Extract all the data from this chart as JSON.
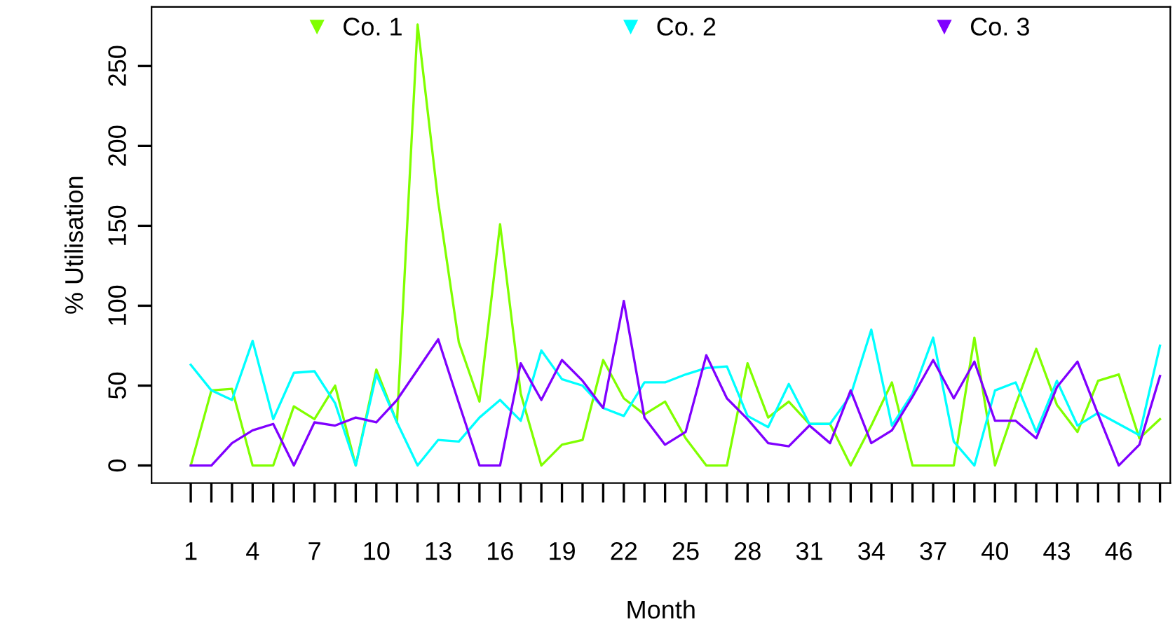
{
  "chart_data": {
    "type": "line",
    "xlabel": "Month",
    "ylabel": "% Utilisation",
    "legend": "top",
    "x": [
      1,
      2,
      3,
      4,
      5,
      6,
      7,
      8,
      9,
      10,
      11,
      12,
      13,
      14,
      15,
      16,
      17,
      18,
      19,
      20,
      21,
      22,
      23,
      24,
      25,
      26,
      27,
      28,
      29,
      30,
      31,
      32,
      33,
      34,
      35,
      36,
      37,
      38,
      39,
      40,
      41,
      42,
      43,
      44,
      45,
      46,
      47,
      48
    ],
    "xlim": [
      -0.9,
      48.5
    ],
    "ylim": [
      -11,
      287
    ],
    "yticks": [
      0,
      50,
      100,
      150,
      200,
      250
    ],
    "xticks": [
      1,
      {
        "value": 2,
        "label": null
      },
      {
        "value": 3,
        "label": null
      },
      4,
      {
        "value": 5,
        "label": null
      },
      {
        "value": 6,
        "label": null
      },
      7,
      {
        "value": 8,
        "label": null
      },
      {
        "value": 9,
        "label": null
      },
      10,
      {
        "value": 11,
        "label": null
      },
      {
        "value": 12,
        "label": null
      },
      13,
      {
        "value": 14,
        "label": null
      },
      {
        "value": 15,
        "label": null
      },
      16,
      {
        "value": 17,
        "label": null
      },
      {
        "value": 18,
        "label": null
      },
      19,
      {
        "value": 20,
        "label": null
      },
      {
        "value": 21,
        "label": null
      },
      22,
      {
        "value": 23,
        "label": null
      },
      {
        "value": 24,
        "label": null
      },
      25,
      {
        "value": 26,
        "label": null
      },
      {
        "value": 27,
        "label": null
      },
      28,
      {
        "value": 29,
        "label": null
      },
      {
        "value": 30,
        "label": null
      },
      31,
      {
        "value": 32,
        "label": null
      },
      {
        "value": 33,
        "label": null
      },
      34,
      {
        "value": 35,
        "label": null
      },
      {
        "value": 36,
        "label": null
      },
      37,
      {
        "value": 38,
        "label": null
      },
      {
        "value": 39,
        "label": null
      },
      40,
      {
        "value": 41,
        "label": null
      },
      {
        "value": 42,
        "label": null
      },
      43,
      {
        "value": 44,
        "label": null
      },
      {
        "value": 45,
        "label": null
      },
      46,
      {
        "value": 47,
        "label": null
      },
      {
        "value": 48,
        "label": null
      }
    ],
    "series": [
      {
        "name": "Co. 1",
        "color": "#80ff00",
        "values": [
          0,
          47,
          48,
          0,
          0,
          37,
          29,
          50,
          0,
          60,
          27,
          276,
          165,
          77,
          40,
          151,
          45,
          0,
          13,
          16,
          66,
          42,
          32,
          40,
          17,
          0,
          0,
          64,
          30,
          40,
          26,
          26,
          0,
          25,
          52,
          0,
          0,
          0,
          80,
          0,
          38,
          73,
          38,
          21,
          53,
          57,
          17,
          29
        ]
      },
      {
        "name": "Co. 2",
        "color": "#00ffff",
        "values": [
          63,
          47,
          41,
          78,
          29,
          58,
          59,
          39,
          0,
          57,
          27,
          0,
          16,
          15,
          30,
          41,
          28,
          72,
          54,
          50,
          36,
          31,
          52,
          52,
          57,
          61,
          62,
          31,
          24,
          51,
          26,
          26,
          44,
          85,
          25,
          45,
          80,
          15,
          0,
          47,
          52,
          21,
          53,
          25,
          33,
          26,
          19,
          75
        ]
      },
      {
        "name": "Co. 3",
        "color": "#8000ff",
        "values": [
          0,
          0,
          14,
          22,
          26,
          0,
          27,
          25,
          30,
          27,
          41,
          60,
          79,
          39,
          0,
          0,
          64,
          41,
          66,
          53,
          36,
          103,
          30,
          13,
          21,
          69,
          42,
          29,
          14,
          12,
          25,
          14,
          47,
          14,
          22,
          43,
          66,
          42,
          65,
          28,
          28,
          17,
          49,
          65,
          32,
          0,
          13,
          56
        ]
      }
    ]
  }
}
